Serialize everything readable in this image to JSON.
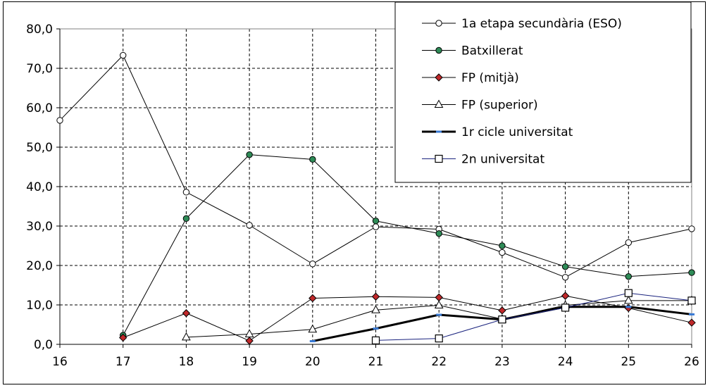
{
  "chart_data": {
    "type": "line",
    "x": [
      16,
      17,
      18,
      19,
      20,
      21,
      22,
      23,
      24,
      25,
      26
    ],
    "xlim": [
      16,
      26
    ],
    "ylim": [
      0,
      80
    ],
    "y_ticks": [
      "0,0",
      "10,0",
      "20,0",
      "30,0",
      "40,0",
      "50,0",
      "60,0",
      "70,0",
      "80,0"
    ],
    "x_ticks": [
      "16",
      "17",
      "18",
      "19",
      "20",
      "21",
      "22",
      "23",
      "24",
      "25",
      "26"
    ],
    "grid": true,
    "legend_position": "top-right",
    "series": [
      {
        "name": "1a etapa secundària (ESO)",
        "marker": "circle-open",
        "color": "#000000",
        "line_width": 1,
        "values": [
          56.8,
          73.3,
          38.6,
          30.2,
          20.4,
          29.8,
          29.2,
          23.3,
          17.0,
          25.8,
          29.3
        ]
      },
      {
        "name": "Batxillerat",
        "marker": "circle-filled",
        "color": "#000000",
        "marker_fill": "#2e8b57",
        "line_width": 1,
        "values": [
          null,
          2.3,
          31.9,
          48.1,
          46.9,
          31.3,
          28.1,
          25.0,
          19.7,
          17.2,
          18.2
        ]
      },
      {
        "name": "FP (mitjà)",
        "marker": "diamond-filled",
        "color": "#000000",
        "marker_fill": "#c0282a",
        "line_width": 1,
        "values": [
          null,
          1.7,
          7.9,
          0.9,
          11.7,
          12.1,
          11.9,
          8.6,
          12.3,
          9.2,
          5.5
        ]
      },
      {
        "name": "FP (superior)",
        "marker": "triangle-open",
        "color": "#000000",
        "line_width": 1,
        "values": [
          null,
          null,
          1.8,
          2.6,
          3.8,
          8.7,
          9.9,
          6.4,
          9.9,
          11.1,
          11.1
        ]
      },
      {
        "name": "1r cicle universitat",
        "marker": "dash",
        "color": "#000000",
        "marker_fill": "#3a7bd5",
        "line_width": 3,
        "values": [
          null,
          null,
          null,
          null,
          0.8,
          4.0,
          7.5,
          6.3,
          9.5,
          9.5,
          7.6
        ]
      },
      {
        "name": "2n universitat",
        "marker": "square-open",
        "color": "#1a237e",
        "line_width": 1,
        "values": [
          null,
          null,
          null,
          null,
          null,
          1.0,
          1.5,
          6.3,
          9.3,
          13.0,
          11.1
        ]
      }
    ]
  }
}
